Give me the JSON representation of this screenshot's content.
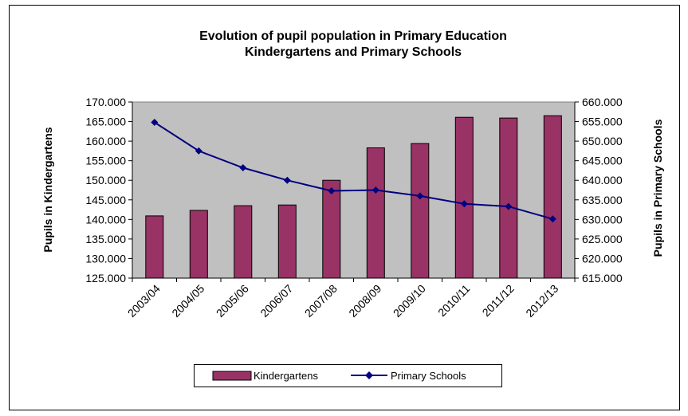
{
  "chart_data": {
    "type": "bar",
    "title": "Evolution of pupil population in Primary Education",
    "subtitle": "Kindergartens and Primary Schools",
    "categories": [
      "2003/04",
      "2004/05",
      "2005/06",
      "2006/07",
      "2007/08",
      "2008/09",
      "2009/10",
      "2010/11",
      "2011/12",
      "2012/13"
    ],
    "series": [
      {
        "name": "Kindergartens",
        "type": "bar",
        "axis": "left",
        "color": "#993366",
        "values": [
          140900,
          142300,
          143500,
          143700,
          150000,
          158300,
          159400,
          166100,
          165900,
          166500
        ]
      },
      {
        "name": "Primary Schools",
        "type": "line",
        "axis": "right",
        "color": "#000080",
        "values": [
          654800,
          647500,
          643200,
          640000,
          637300,
          637500,
          636000,
          634000,
          633300,
          630100
        ]
      }
    ],
    "ylabel": "Pupils in Kindergartens",
    "y2label": "Pupils in Primary Schools",
    "ylim": [
      125000,
      170000
    ],
    "y2lim": [
      615000,
      660000
    ],
    "yticks": [
      "125.000",
      "130.000",
      "135.000",
      "140.000",
      "145.000",
      "150.000",
      "155.000",
      "160.000",
      "165.000",
      "170.000"
    ],
    "y2ticks": [
      "615.000",
      "620.000",
      "625.000",
      "630.000",
      "635.000",
      "640.000",
      "645.000",
      "650.000",
      "655.000",
      "660.000"
    ],
    "plot_background": "#c0c0c0",
    "grid": false,
    "legend": "bottom"
  }
}
